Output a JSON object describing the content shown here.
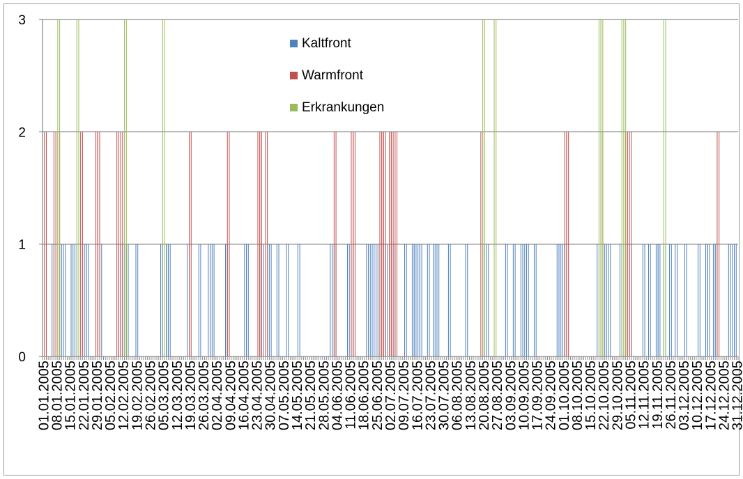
{
  "chart_data": {
    "type": "bar",
    "title": "",
    "xlabel": "",
    "ylabel": "",
    "ylim": [
      0,
      3
    ],
    "yticks": [
      0,
      1,
      2,
      3
    ],
    "grid": true,
    "legend_position": "top-center",
    "x_start": "01.01.2005",
    "x_end": "31.12.2005",
    "tick_labels": [
      "01.01.2005",
      "08.01.2005",
      "15.01.2005",
      "22.01.2005",
      "29.01.2005",
      "05.02.2005",
      "12.02.2005",
      "19.02.2005",
      "26.02.2005",
      "05.03.2005",
      "12.03.2005",
      "19.03.2005",
      "26.03.2005",
      "02.04.2005",
      "09.04.2005",
      "16.04.2005",
      "23.04.2005",
      "30.04.2005",
      "07.05.2005",
      "14.05.2005",
      "21.05.2005",
      "28.05.2005",
      "04.06.2005",
      "11.06.2005",
      "18.06.2005",
      "25.06.2005",
      "02.07.2005",
      "09.07.2005",
      "16.07.2005",
      "23.07.2005",
      "30.07.2005",
      "06.08.2005",
      "13.08.2005",
      "20.08.2005",
      "27.08.2005",
      "03.09.2005",
      "10.09.2005",
      "17.09.2005",
      "24.09.2005",
      "01.10.2005",
      "08.10.2005",
      "15.10.2005",
      "22.10.2005",
      "29.10.2005",
      "05.11.2005",
      "12.11.2005",
      "19.11.2005",
      "26.11.2005",
      "03.12.2005",
      "10.12.2005",
      "17.12.2005",
      "24.12.2005",
      "31.12.2005"
    ],
    "series": [
      {
        "name": "Kaltfront",
        "color": "#4f81bd",
        "value": 1,
        "dates": [
          "06.01.2005",
          "10.01.2005",
          "12.01.2005",
          "16.01.2005",
          "18.01.2005",
          "23.01.2005",
          "24.01.2005",
          "31.01.2005",
          "10.02.2005",
          "11.02.2005",
          "13.02.2005",
          "14.02.2005",
          "19.02.2005",
          "04.03.2005",
          "05.03.2005",
          "06.03.2005",
          "07.03.2005",
          "08.03.2005",
          "18.03.2005",
          "24.03.2005",
          "29.03.2005",
          "31.03.2005",
          "07.04.2005",
          "08.04.2005",
          "17.04.2005",
          "18.04.2005",
          "25.04.2005",
          "26.04.2005",
          "30.04.2005",
          "04.05.2005",
          "09.05.2005",
          "15.05.2005",
          "01.06.2005",
          "03.06.2005",
          "10.06.2005",
          "12.06.2005",
          "20.06.2005",
          "22.06.2005",
          "24.06.2005",
          "26.06.2005",
          "29.06.2005",
          "01.07.2005",
          "04.07.2005",
          "10.07.2005",
          "14.07.2005",
          "15.07.2005",
          "17.07.2005",
          "18.07.2005",
          "22.07.2005",
          "25.07.2005",
          "27.07.2005",
          "02.08.2005",
          "11.08.2005",
          "20.08.2005",
          "22.08.2005",
          "01.09.2005",
          "05.09.2005",
          "09.09.2005",
          "10.09.2005",
          "12.09.2005",
          "16.09.2005",
          "28.09.2005",
          "29.09.2005",
          "01.10.2005",
          "02.10.2005",
          "19.10.2005",
          "23.10.2005",
          "25.10.2005",
          "31.10.2005",
          "02.11.2005",
          "05.11.2005",
          "12.11.2005",
          "15.11.2005",
          "19.11.2005",
          "20.11.2005",
          "23.11.2005",
          "26.11.2005",
          "29.11.2005",
          "04.12.2005",
          "11.12.2005",
          "15.12.2005",
          "16.12.2005",
          "19.12.2005",
          "20.12.2005",
          "27.12.2005",
          "29.12.2005",
          "30.12.2005"
        ]
      },
      {
        "name": "Warmfront",
        "color": "#c0504d",
        "value": 2,
        "dates": [
          "02.01.2005",
          "07.01.2005",
          "09.01.2005",
          "21.01.2005",
          "29.01.2005",
          "30.01.2005",
          "09.02.2005",
          "11.02.2005",
          "19.03.2005",
          "08.04.2005",
          "24.04.2005",
          "25.04.2005",
          "28.04.2005",
          "03.06.2005",
          "12.06.2005",
          "13.06.2005",
          "27.06.2005",
          "28.06.2005",
          "29.06.2005",
          "02.07.2005",
          "03.07.2005",
          "05.07.2005",
          "19.08.2005",
          "02.10.2005",
          "03.10.2005",
          "21.10.2005",
          "02.11.2005",
          "03.11.2005",
          "05.11.2005",
          "21.12.2005"
        ]
      },
      {
        "name": "Erkrankungen",
        "color": "#9bbb59",
        "value": 3,
        "dates": [
          "09.01.2005",
          "19.01.2005",
          "13.02.2005",
          "05.03.2005",
          "20.08.2005",
          "26.08.2005",
          "20.10.2005",
          "21.10.2005",
          "01.11.2005",
          "02.11.2005",
          "23.11.2005"
        ]
      }
    ]
  }
}
